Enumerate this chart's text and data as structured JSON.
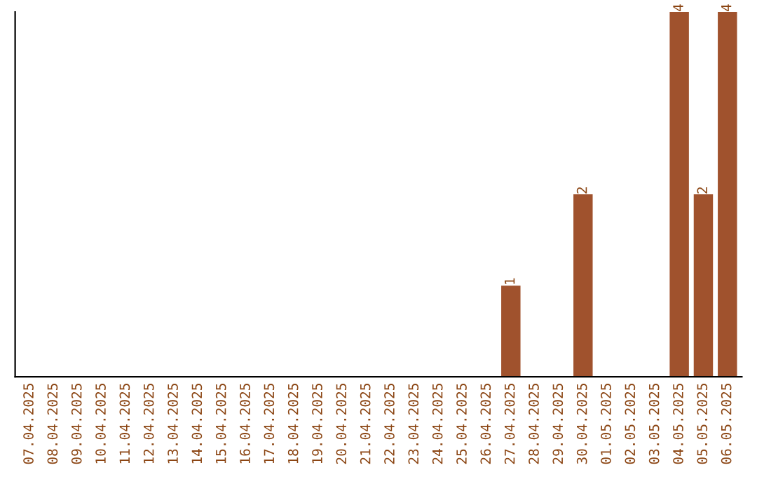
{
  "chart_data": {
    "type": "bar",
    "categories": [
      "07.04.2025",
      "08.04.2025",
      "09.04.2025",
      "10.04.2025",
      "11.04.2025",
      "12.04.2025",
      "13.04.2025",
      "14.04.2025",
      "15.04.2025",
      "16.04.2025",
      "17.04.2025",
      "18.04.2025",
      "19.04.2025",
      "20.04.2025",
      "21.04.2025",
      "22.04.2025",
      "23.04.2025",
      "24.04.2025",
      "25.04.2025",
      "26.04.2025",
      "27.04.2025",
      "28.04.2025",
      "29.04.2025",
      "30.04.2025",
      "01.05.2025",
      "02.05.2025",
      "03.05.2025",
      "04.05.2025",
      "05.05.2025",
      "06.05.2025"
    ],
    "values": [
      null,
      null,
      null,
      null,
      null,
      null,
      null,
      null,
      null,
      null,
      null,
      null,
      null,
      null,
      null,
      null,
      null,
      null,
      null,
      null,
      1,
      null,
      null,
      2,
      null,
      null,
      null,
      4,
      2,
      4
    ],
    "data_labels": true,
    "color": "#a0522d",
    "tick_labels": "x",
    "grid": false,
    "legend": false
  }
}
